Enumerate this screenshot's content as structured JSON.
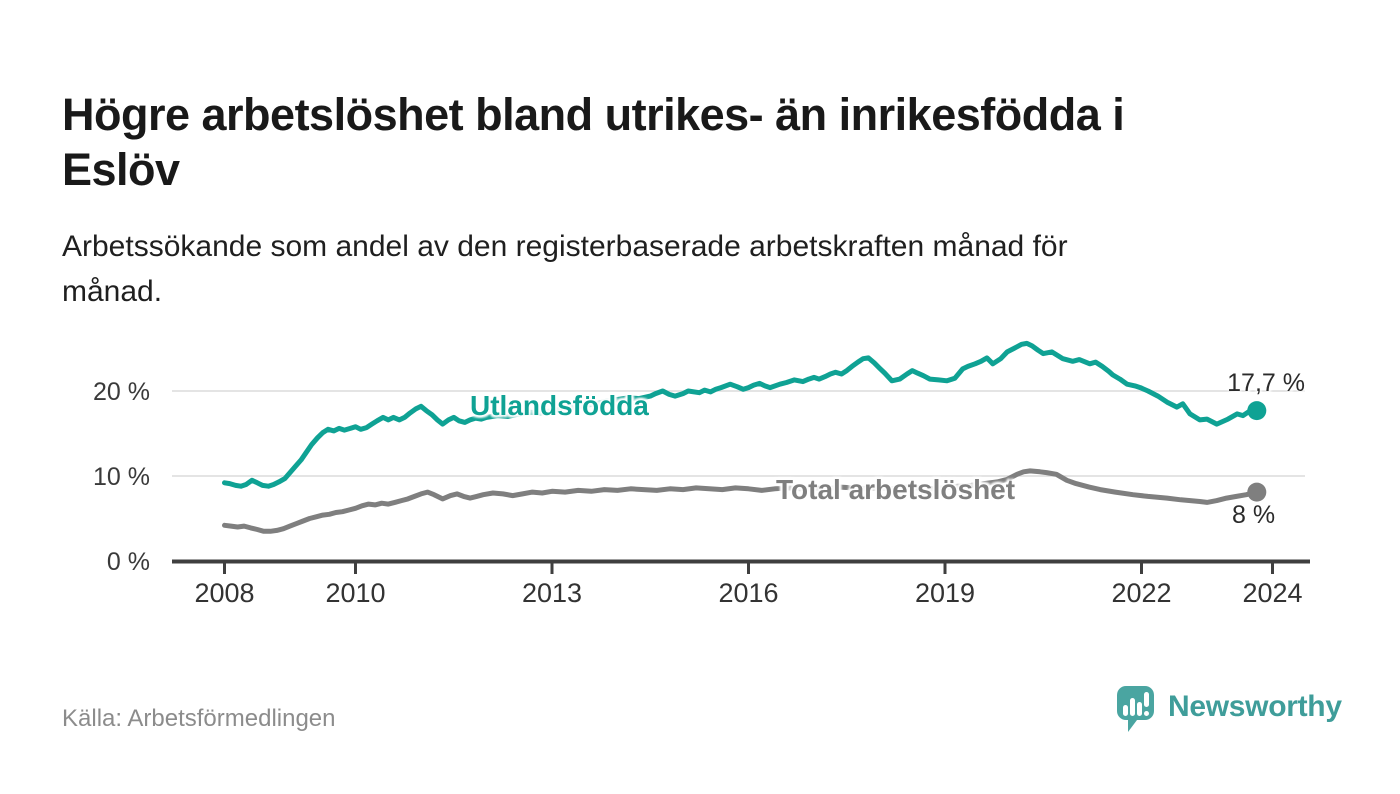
{
  "header": {
    "title_line1": "Högre arbetslöshet bland utrikes- än inrikesfödda i",
    "title_line2": "Eslöv",
    "subtitle_line1": "Arbetssökande som andel av den registerbaserade arbetskraften månad för",
    "subtitle_line2": "månad."
  },
  "chart_data": {
    "type": "line",
    "title": "Högre arbetslöshet bland utrikes- än inrikesfödda i Eslöv",
    "subtitle": "Arbetssökande som andel av den registerbaserade arbetskraften månad för månad.",
    "x_axis": {
      "unit": "year",
      "ticks": [
        2008,
        2010,
        2013,
        2016,
        2019,
        2022,
        2024
      ],
      "range_years": [
        2007.2,
        2024.6
      ]
    },
    "y_axis": {
      "unit": "%",
      "ticks": [
        0,
        10,
        20
      ],
      "tick_labels": [
        "0 %",
        "10 %",
        "20 %"
      ],
      "range": [
        0,
        27
      ],
      "grid": true
    },
    "series": [
      {
        "name": "Utlandsfödda",
        "slug": "utlandsfodda",
        "color": "#0fa294",
        "end_label": "17,7 %",
        "end_value": 17.7,
        "points": [
          [
            2008.0,
            9.2
          ],
          [
            2008.08,
            9.1
          ],
          [
            2008.17,
            8.9
          ],
          [
            2008.25,
            8.8
          ],
          [
            2008.33,
            9.0
          ],
          [
            2008.42,
            9.5
          ],
          [
            2008.5,
            9.2
          ],
          [
            2008.58,
            8.9
          ],
          [
            2008.67,
            8.8
          ],
          [
            2008.75,
            9.0
          ],
          [
            2008.83,
            9.3
          ],
          [
            2008.92,
            9.7
          ],
          [
            2009.0,
            10.4
          ],
          [
            2009.08,
            11.1
          ],
          [
            2009.17,
            11.9
          ],
          [
            2009.25,
            12.8
          ],
          [
            2009.33,
            13.7
          ],
          [
            2009.42,
            14.5
          ],
          [
            2009.5,
            15.1
          ],
          [
            2009.58,
            15.5
          ],
          [
            2009.67,
            15.3
          ],
          [
            2009.75,
            15.6
          ],
          [
            2009.83,
            15.4
          ],
          [
            2009.92,
            15.6
          ],
          [
            2010.0,
            15.8
          ],
          [
            2010.08,
            15.5
          ],
          [
            2010.17,
            15.7
          ],
          [
            2010.25,
            16.1
          ],
          [
            2010.33,
            16.5
          ],
          [
            2010.42,
            16.9
          ],
          [
            2010.5,
            16.6
          ],
          [
            2010.58,
            16.9
          ],
          [
            2010.67,
            16.6
          ],
          [
            2010.75,
            16.9
          ],
          [
            2010.83,
            17.4
          ],
          [
            2010.92,
            17.9
          ],
          [
            2011.0,
            18.2
          ],
          [
            2011.08,
            17.7
          ],
          [
            2011.17,
            17.2
          ],
          [
            2011.25,
            16.6
          ],
          [
            2011.33,
            16.1
          ],
          [
            2011.42,
            16.6
          ],
          [
            2011.5,
            16.9
          ],
          [
            2011.58,
            16.5
          ],
          [
            2011.67,
            16.3
          ],
          [
            2011.75,
            16.6
          ],
          [
            2011.83,
            16.8
          ],
          [
            2011.92,
            16.7
          ],
          [
            2012.0,
            16.9
          ],
          [
            2012.17,
            17.1
          ],
          [
            2012.33,
            17.0
          ],
          [
            2012.5,
            17.3
          ],
          [
            2012.67,
            17.5
          ],
          [
            2012.83,
            17.4
          ],
          [
            2013.0,
            17.7
          ],
          [
            2013.17,
            17.9
          ],
          [
            2013.33,
            18.1
          ],
          [
            2013.5,
            18.3
          ],
          [
            2013.67,
            18.5
          ],
          [
            2013.83,
            18.8
          ],
          [
            2014.0,
            19.0
          ],
          [
            2014.17,
            19.2
          ],
          [
            2014.33,
            19.1
          ],
          [
            2014.5,
            19.4
          ],
          [
            2014.58,
            19.7
          ],
          [
            2014.69,
            20.0
          ],
          [
            2014.79,
            19.6
          ],
          [
            2014.88,
            19.4
          ],
          [
            2015.0,
            19.7
          ],
          [
            2015.08,
            20.0
          ],
          [
            2015.25,
            19.8
          ],
          [
            2015.33,
            20.1
          ],
          [
            2015.42,
            19.9
          ],
          [
            2015.5,
            20.2
          ],
          [
            2015.58,
            20.4
          ],
          [
            2015.72,
            20.8
          ],
          [
            2015.83,
            20.5
          ],
          [
            2015.92,
            20.2
          ],
          [
            2016.0,
            20.4
          ],
          [
            2016.08,
            20.7
          ],
          [
            2016.17,
            20.9
          ],
          [
            2016.25,
            20.6
          ],
          [
            2016.33,
            20.4
          ],
          [
            2016.48,
            20.8
          ],
          [
            2016.58,
            21.0
          ],
          [
            2016.7,
            21.3
          ],
          [
            2016.83,
            21.1
          ],
          [
            2016.92,
            21.4
          ],
          [
            2017.0,
            21.6
          ],
          [
            2017.08,
            21.4
          ],
          [
            2017.17,
            21.7
          ],
          [
            2017.25,
            22.0
          ],
          [
            2017.33,
            22.2
          ],
          [
            2017.42,
            22.0
          ],
          [
            2017.5,
            22.4
          ],
          [
            2017.58,
            22.9
          ],
          [
            2017.67,
            23.4
          ],
          [
            2017.75,
            23.8
          ],
          [
            2017.83,
            23.9
          ],
          [
            2017.92,
            23.3
          ],
          [
            2018.0,
            22.7
          ],
          [
            2018.08,
            22.1
          ],
          [
            2018.19,
            21.2
          ],
          [
            2018.31,
            21.4
          ],
          [
            2018.42,
            22.0
          ],
          [
            2018.5,
            22.4
          ],
          [
            2018.58,
            22.1
          ],
          [
            2018.67,
            21.8
          ],
          [
            2018.77,
            21.4
          ],
          [
            2018.9,
            21.3
          ],
          [
            2019.03,
            21.2
          ],
          [
            2019.15,
            21.5
          ],
          [
            2019.27,
            22.6
          ],
          [
            2019.35,
            22.9
          ],
          [
            2019.46,
            23.2
          ],
          [
            2019.55,
            23.5
          ],
          [
            2019.64,
            23.9
          ],
          [
            2019.73,
            23.2
          ],
          [
            2019.85,
            23.8
          ],
          [
            2019.95,
            24.6
          ],
          [
            2020.05,
            25.0
          ],
          [
            2020.17,
            25.5
          ],
          [
            2020.25,
            25.6
          ],
          [
            2020.33,
            25.3
          ],
          [
            2020.42,
            24.8
          ],
          [
            2020.5,
            24.4
          ],
          [
            2020.63,
            24.6
          ],
          [
            2020.8,
            23.8
          ],
          [
            2020.95,
            23.5
          ],
          [
            2021.05,
            23.7
          ],
          [
            2021.21,
            23.2
          ],
          [
            2021.3,
            23.4
          ],
          [
            2021.4,
            22.9
          ],
          [
            2021.5,
            22.3
          ],
          [
            2021.56,
            21.9
          ],
          [
            2021.67,
            21.4
          ],
          [
            2021.78,
            20.8
          ],
          [
            2021.9,
            20.6
          ],
          [
            2021.98,
            20.4
          ],
          [
            2022.1,
            20.0
          ],
          [
            2022.25,
            19.4
          ],
          [
            2022.39,
            18.7
          ],
          [
            2022.54,
            18.1
          ],
          [
            2022.63,
            18.5
          ],
          [
            2022.74,
            17.3
          ],
          [
            2022.89,
            16.6
          ],
          [
            2023.0,
            16.7
          ],
          [
            2023.15,
            16.1
          ],
          [
            2023.32,
            16.7
          ],
          [
            2023.46,
            17.3
          ],
          [
            2023.55,
            17.1
          ],
          [
            2023.7,
            17.9
          ],
          [
            2023.76,
            17.7
          ]
        ]
      },
      {
        "name": "Total arbetslöshet",
        "slug": "total-arbetsloshet",
        "color": "#7f7f7f",
        "end_label": "8 %",
        "end_value": 8.1,
        "points": [
          [
            2008.0,
            4.2
          ],
          [
            2008.1,
            4.1
          ],
          [
            2008.2,
            4.0
          ],
          [
            2008.3,
            4.1
          ],
          [
            2008.4,
            3.9
          ],
          [
            2008.5,
            3.7
          ],
          [
            2008.6,
            3.5
          ],
          [
            2008.7,
            3.5
          ],
          [
            2008.8,
            3.6
          ],
          [
            2008.9,
            3.8
          ],
          [
            2009.0,
            4.1
          ],
          [
            2009.1,
            4.4
          ],
          [
            2009.2,
            4.7
          ],
          [
            2009.3,
            5.0
          ],
          [
            2009.4,
            5.2
          ],
          [
            2009.5,
            5.4
          ],
          [
            2009.6,
            5.5
          ],
          [
            2009.7,
            5.7
          ],
          [
            2009.8,
            5.8
          ],
          [
            2009.9,
            6.0
          ],
          [
            2010.0,
            6.2
          ],
          [
            2010.1,
            6.5
          ],
          [
            2010.2,
            6.7
          ],
          [
            2010.3,
            6.6
          ],
          [
            2010.4,
            6.8
          ],
          [
            2010.5,
            6.7
          ],
          [
            2010.6,
            6.9
          ],
          [
            2010.7,
            7.1
          ],
          [
            2010.8,
            7.3
          ],
          [
            2010.9,
            7.6
          ],
          [
            2011.0,
            7.9
          ],
          [
            2011.1,
            8.1
          ],
          [
            2011.2,
            7.8
          ],
          [
            2011.33,
            7.3
          ],
          [
            2011.45,
            7.7
          ],
          [
            2011.55,
            7.9
          ],
          [
            2011.65,
            7.6
          ],
          [
            2011.75,
            7.4
          ],
          [
            2011.85,
            7.6
          ],
          [
            2011.95,
            7.8
          ],
          [
            2012.1,
            8.0
          ],
          [
            2012.25,
            7.9
          ],
          [
            2012.4,
            7.7
          ],
          [
            2012.55,
            7.9
          ],
          [
            2012.7,
            8.1
          ],
          [
            2012.85,
            8.0
          ],
          [
            2013.0,
            8.2
          ],
          [
            2013.2,
            8.1
          ],
          [
            2013.4,
            8.3
          ],
          [
            2013.6,
            8.2
          ],
          [
            2013.8,
            8.4
          ],
          [
            2014.0,
            8.3
          ],
          [
            2014.2,
            8.5
          ],
          [
            2014.4,
            8.4
          ],
          [
            2014.6,
            8.3
          ],
          [
            2014.8,
            8.5
          ],
          [
            2015.0,
            8.4
          ],
          [
            2015.2,
            8.6
          ],
          [
            2015.4,
            8.5
          ],
          [
            2015.6,
            8.4
          ],
          [
            2015.8,
            8.6
          ],
          [
            2016.0,
            8.5
          ],
          [
            2016.2,
            8.3
          ],
          [
            2016.4,
            8.5
          ],
          [
            2016.6,
            8.6
          ],
          [
            2016.8,
            8.5
          ],
          [
            2017.0,
            8.6
          ],
          [
            2017.2,
            8.5
          ],
          [
            2017.4,
            8.7
          ],
          [
            2017.6,
            8.6
          ],
          [
            2017.8,
            8.5
          ],
          [
            2018.0,
            8.6
          ],
          [
            2018.2,
            8.5
          ],
          [
            2018.4,
            8.7
          ],
          [
            2018.6,
            8.6
          ],
          [
            2018.8,
            8.5
          ],
          [
            2019.0,
            8.6
          ],
          [
            2019.2,
            8.8
          ],
          [
            2019.4,
            8.9
          ],
          [
            2019.6,
            9.1
          ],
          [
            2019.8,
            9.3
          ],
          [
            2019.95,
            9.6
          ],
          [
            2020.1,
            10.2
          ],
          [
            2020.2,
            10.5
          ],
          [
            2020.3,
            10.6
          ],
          [
            2020.45,
            10.5
          ],
          [
            2020.55,
            10.4
          ],
          [
            2020.7,
            10.2
          ],
          [
            2020.86,
            9.5
          ],
          [
            2021.0,
            9.1
          ],
          [
            2021.2,
            8.7
          ],
          [
            2021.37,
            8.4
          ],
          [
            2021.6,
            8.1
          ],
          [
            2021.87,
            7.8
          ],
          [
            2022.1,
            7.6
          ],
          [
            2022.39,
            7.4
          ],
          [
            2022.6,
            7.2
          ],
          [
            2022.89,
            7.0
          ],
          [
            2023.0,
            6.9
          ],
          [
            2023.15,
            7.1
          ],
          [
            2023.3,
            7.4
          ],
          [
            2023.45,
            7.6
          ],
          [
            2023.6,
            7.8
          ],
          [
            2023.76,
            8.1
          ]
        ]
      }
    ],
    "legend_position": "inline-labels",
    "source": "Källa: Arbetsförmedlingen"
  },
  "branding": {
    "logo_text": "Newsworthy",
    "logo_color": "#4aa5a1",
    "logo_text_color": "#3f9d9a"
  }
}
